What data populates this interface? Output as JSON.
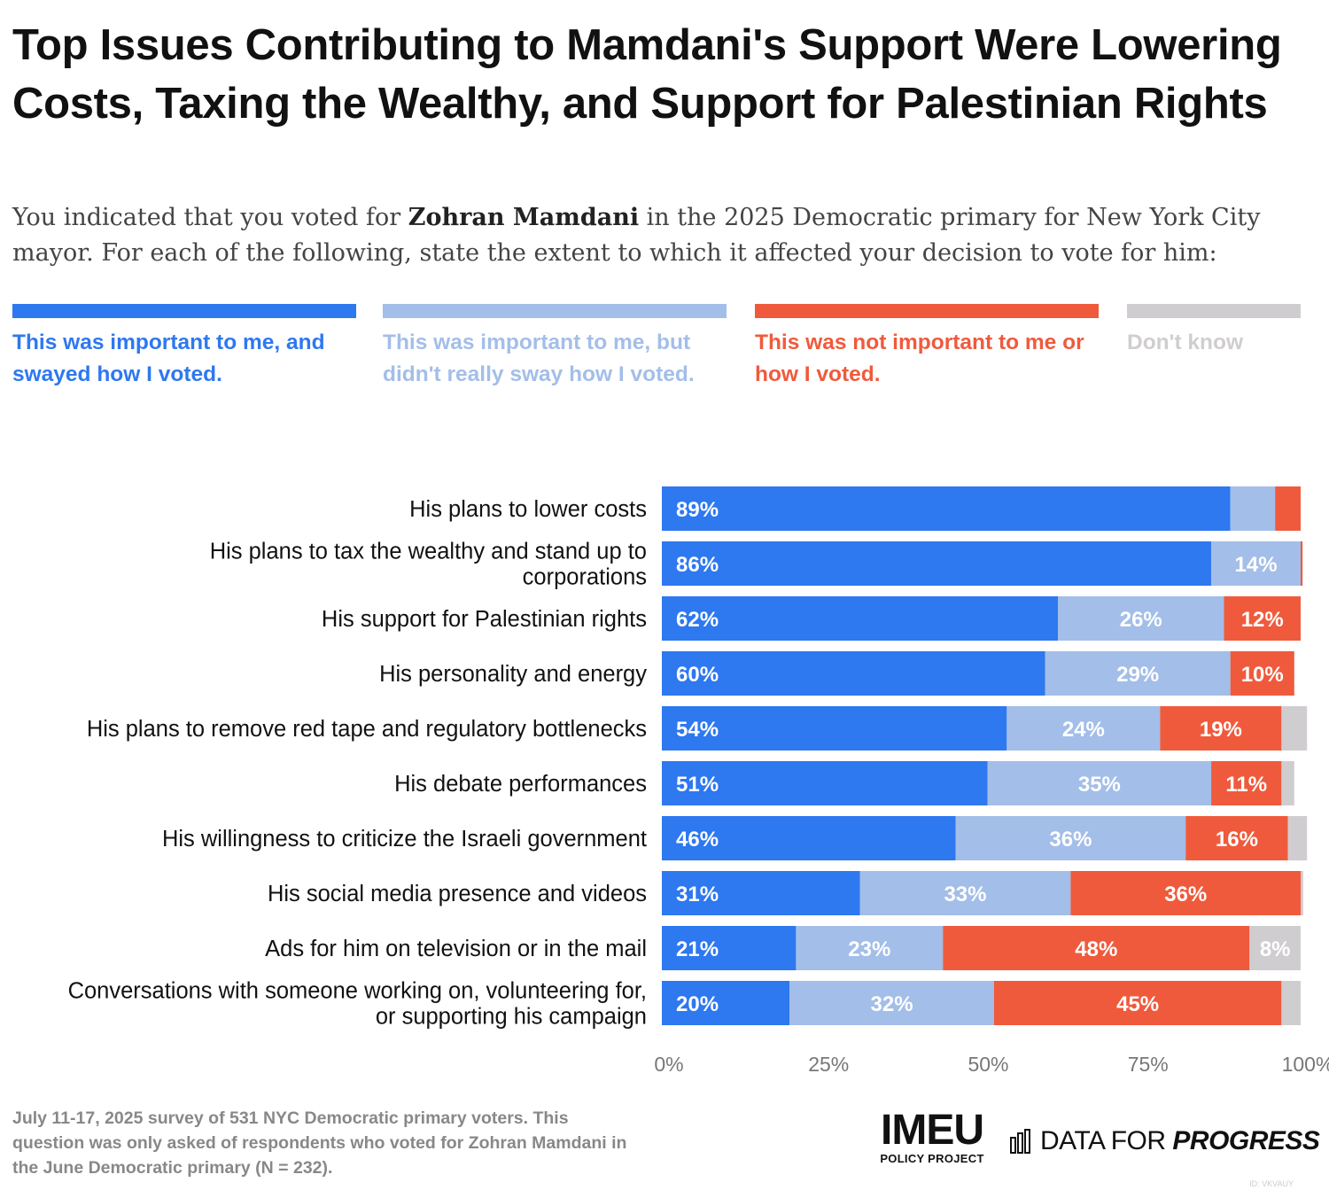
{
  "title": "Top Issues Contributing to Mamdani's Support Were Lowering Costs, Taxing the Wealthy, and Support for Palestinian Rights",
  "subtitle": {
    "before": "You indicated that you voted for ",
    "bold": "Zohran Mamdani",
    "after": " in the 2025 Democratic primary for New York City mayor. For each of the following, state the extent to which it affected your decision to vote for him:"
  },
  "colors": {
    "swayed": "#2e78f0",
    "not_sway": "#a3bee8",
    "not_important": "#f05a3c",
    "dont_know": "#d0cdd0",
    "label_text": "#111111",
    "axis_text": "#777777"
  },
  "legend": [
    {
      "key": "swayed",
      "label": "This was important to me, and swayed how I voted."
    },
    {
      "key": "not_sway",
      "label": "This was important to me, but didn't really sway how I voted."
    },
    {
      "key": "not_important",
      "label": "This was not important to me or how I voted."
    },
    {
      "key": "dont_know",
      "label": "Don't know"
    }
  ],
  "chart_data": {
    "type": "bar",
    "orientation": "horizontal",
    "stacked": true,
    "xlim": [
      0,
      100
    ],
    "x_ticks": [
      "0%",
      "25%",
      "50%",
      "75%",
      "100%"
    ],
    "categories": [
      "His plans to lower costs",
      "His plans to tax the wealthy and stand up to corporations",
      "His support for Palestinian rights",
      "His personality and energy",
      "His plans to remove red tape and regulatory bottlenecks",
      "His debate performances",
      "His willingness to criticize the Israeli government",
      "His social media presence and videos",
      "Ads for him on television or in the mail",
      "Conversations with someone working on, volunteering for, or supporting his campaign"
    ],
    "series": [
      {
        "name": "This was important to me, and swayed how I voted.",
        "key": "swayed",
        "values": [
          89,
          86,
          62,
          60,
          54,
          51,
          46,
          31,
          21,
          20
        ],
        "labels": [
          "89%",
          "86%",
          "62%",
          "60%",
          "54%",
          "51%",
          "46%",
          "31%",
          "21%",
          "20%"
        ]
      },
      {
        "name": "This was important to me, but didn't really sway how I voted.",
        "key": "not_sway",
        "values": [
          7,
          14,
          26,
          29,
          24,
          35,
          36,
          33,
          23,
          32
        ],
        "labels": [
          "",
          "14%",
          "26%",
          "29%",
          "24%",
          "35%",
          "36%",
          "33%",
          "23%",
          "32%"
        ]
      },
      {
        "name": "This was not important to me or how I voted.",
        "key": "not_important",
        "values": [
          4,
          0.3,
          12,
          10,
          19,
          11,
          16,
          36,
          48,
          45
        ],
        "labels": [
          "",
          "",
          "12%",
          "10%",
          "19%",
          "11%",
          "16%",
          "36%",
          "48%",
          "45%"
        ]
      },
      {
        "name": "Don't know",
        "key": "dont_know",
        "values": [
          0,
          0,
          0,
          0,
          4,
          2,
          3,
          0.4,
          8,
          3
        ],
        "labels": [
          "",
          "",
          "",
          "",
          "",
          "",
          "",
          "",
          "8%",
          ""
        ]
      }
    ]
  },
  "footnote": "July 11-17, 2025 survey of 531 NYC Democratic primary voters. This question was only asked of respondents who voted for Zohran Mamdani in the June Democratic primary (N = 232).",
  "logos": {
    "imeu_main": "IMEU",
    "imeu_sub": "POLICY PROJECT",
    "dfp_regular": "DATA FOR ",
    "dfp_italic": "PROGRESS",
    "dfp_icon": "bar-chart-icon"
  },
  "chart_id": "ID: VKVAUY"
}
